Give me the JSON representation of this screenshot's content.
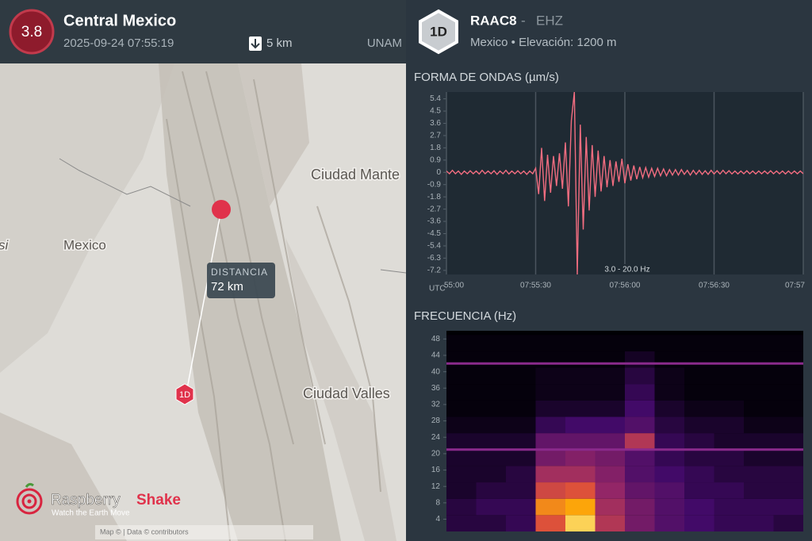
{
  "event": {
    "magnitude": 3.8,
    "region": "Central Mexico",
    "datetime": "2025-09-24 07:55:19",
    "depth": "5 km",
    "source": "UNAM"
  },
  "map": {
    "labels": [
      "Ciudad Mante",
      "Mexico",
      "Ciudad Valles",
      "si"
    ],
    "distance_label": "DISTANCIA",
    "distance": "72 km",
    "station_marker": "1D",
    "attribution": "Map © | Data © contributors"
  },
  "brand": {
    "name_1": "Raspberry",
    "name_2": "Shake",
    "tagline": "Watch the Earth Move"
  },
  "station": {
    "badge": "1D",
    "code": "RAAC8",
    "separator": "-",
    "channel": "EHZ",
    "location": "Mexico • Elevación: 1200 m"
  },
  "chart_data": [
    {
      "type": "line",
      "title": "FORMA DE ONDAS (µm/s)",
      "x_label": "UTC",
      "annotation": "3.0 - 20.0 Hz",
      "color": "#f26d80",
      "grid": true,
      "x": [
        0,
        1,
        2,
        3,
        4,
        5,
        6,
        7,
        8,
        9,
        10,
        11,
        12,
        13,
        14,
        15,
        16,
        17,
        18,
        19,
        20,
        21,
        22,
        23,
        24,
        25,
        26,
        27,
        28,
        29,
        30,
        31,
        32,
        33,
        34,
        35,
        36,
        37,
        38,
        39,
        40,
        41,
        42,
        43,
        44,
        45,
        46,
        47,
        48,
        49,
        50,
        51,
        52,
        53,
        54,
        55,
        56,
        57,
        58,
        59,
        60,
        61,
        62,
        63,
        64,
        65,
        66,
        67,
        68,
        69,
        70,
        71,
        72,
        73,
        74,
        75,
        76,
        77,
        78,
        79,
        80,
        81,
        82,
        83,
        84,
        85,
        86,
        87,
        88,
        89,
        90,
        91,
        92,
        93,
        94,
        95,
        96,
        97,
        98,
        99,
        100,
        101,
        102,
        103,
        104,
        105,
        106,
        107,
        108,
        109,
        110,
        111,
        112,
        113,
        114,
        115,
        116,
        117,
        118,
        119,
        120
      ],
      "values": [
        0.1,
        -0.1,
        0.15,
        -0.1,
        0.1,
        -0.15,
        0.1,
        -0.1,
        0.12,
        -0.1,
        0.1,
        -0.12,
        0.15,
        -0.1,
        0.1,
        -0.1,
        0.12,
        -0.15,
        0.1,
        -0.1,
        0.15,
        -0.12,
        0.1,
        -0.1,
        0.12,
        -0.1,
        0.1,
        -0.15,
        0.1,
        -0.1,
        0.3,
        -1.6,
        1.8,
        -2.1,
        1.3,
        -1.5,
        1.2,
        -1.0,
        1.4,
        -1.2,
        2.2,
        -2.5,
        3.8,
        5.9,
        -7.5,
        3.5,
        -4.2,
        2.6,
        -2.8,
        2.0,
        -1.8,
        1.6,
        -1.4,
        1.2,
        -1.1,
        0.9,
        -1.0,
        0.8,
        -0.7,
        1.0,
        -0.8,
        0.6,
        -0.6,
        0.5,
        -0.5,
        0.4,
        -0.4,
        0.35,
        -0.35,
        0.3,
        -0.3,
        0.3,
        -0.25,
        0.25,
        -0.25,
        0.2,
        -0.2,
        0.2,
        -0.2,
        0.2,
        -0.15,
        0.15,
        -0.2,
        0.15,
        -0.15,
        0.15,
        -0.15,
        0.12,
        -0.15,
        0.15,
        -0.12,
        0.12,
        -0.12,
        0.15,
        -0.1,
        0.12,
        -0.12,
        0.1,
        -0.12,
        0.1,
        -0.1,
        0.12,
        -0.1,
        0.1,
        -0.12,
        0.1,
        -0.1,
        0.1,
        -0.1,
        0.12,
        -0.1,
        0.1,
        -0.1,
        0.1,
        -0.12,
        0.1,
        -0.1,
        0.1,
        -0.1,
        0.1,
        -0.1
      ],
      "xlim": [
        0,
        120
      ],
      "xticks": [
        {
          "value": 0,
          "label": "55:00"
        },
        {
          "value": 30,
          "label": "07:55:30"
        },
        {
          "value": 60,
          "label": "07:56:00"
        },
        {
          "value": 90,
          "label": "07:56:30"
        },
        {
          "value": 120,
          "label": "07:57"
        }
      ],
      "ylim": [
        -7.5,
        5.9
      ],
      "yticks": [
        5.4,
        4.5,
        3.6,
        2.7,
        1.8,
        0.9,
        0,
        -0.9,
        -1.8,
        -2.7,
        -3.6,
        -4.5,
        -5.4,
        -6.3,
        -7.2
      ]
    },
    {
      "type": "heatmap",
      "title": "FRECUENCIA (Hz)",
      "x": [
        5,
        15,
        25,
        35,
        45,
        55,
        65,
        75,
        85,
        95,
        105,
        115
      ],
      "y": [
        3,
        7,
        11,
        15,
        19,
        23,
        27,
        31,
        35,
        39,
        43,
        47
      ],
      "z": [
        [
          0.15,
          0.15,
          0.2,
          0.75,
          0.95,
          0.6,
          0.4,
          0.3,
          0.25,
          0.2,
          0.2,
          0.15
        ],
        [
          0.15,
          0.2,
          0.2,
          0.85,
          0.9,
          0.55,
          0.4,
          0.3,
          0.25,
          0.2,
          0.2,
          0.2
        ],
        [
          0.1,
          0.15,
          0.15,
          0.7,
          0.75,
          0.5,
          0.35,
          0.3,
          0.2,
          0.2,
          0.15,
          0.15
        ],
        [
          0.1,
          0.1,
          0.15,
          0.55,
          0.55,
          0.45,
          0.3,
          0.25,
          0.2,
          0.15,
          0.15,
          0.15
        ],
        [
          0.1,
          0.1,
          0.1,
          0.4,
          0.45,
          0.4,
          0.3,
          0.2,
          0.15,
          0.15,
          0.1,
          0.1
        ],
        [
          0.1,
          0.1,
          0.1,
          0.35,
          0.35,
          0.35,
          0.6,
          0.2,
          0.15,
          0.1,
          0.1,
          0.1
        ],
        [
          0.05,
          0.05,
          0.05,
          0.2,
          0.25,
          0.25,
          0.3,
          0.15,
          0.1,
          0.1,
          0.05,
          0.05
        ],
        [
          0.02,
          0.02,
          0.02,
          0.1,
          0.1,
          0.1,
          0.25,
          0.1,
          0.05,
          0.05,
          0.02,
          0.02
        ],
        [
          0.02,
          0.02,
          0.02,
          0.05,
          0.05,
          0.05,
          0.2,
          0.05,
          0.02,
          0.02,
          0.02,
          0.02
        ],
        [
          0.02,
          0.02,
          0.02,
          0.05,
          0.05,
          0.05,
          0.15,
          0.05,
          0.02,
          0.02,
          0.02,
          0.02
        ],
        [
          0.02,
          0.02,
          0.02,
          0.02,
          0.02,
          0.02,
          0.08,
          0.02,
          0.02,
          0.02,
          0.02,
          0.02
        ],
        [
          0.02,
          0.02,
          0.02,
          0.02,
          0.02,
          0.02,
          0.02,
          0.02,
          0.02,
          0.02,
          0.02,
          0.02
        ]
      ],
      "tones": [
        21,
        42
      ],
      "xlim": [
        0,
        120
      ],
      "ylim": [
        1,
        50
      ],
      "yticks": [
        4,
        8,
        12,
        16,
        20,
        24,
        28,
        32,
        36,
        40,
        44,
        48
      ]
    }
  ]
}
